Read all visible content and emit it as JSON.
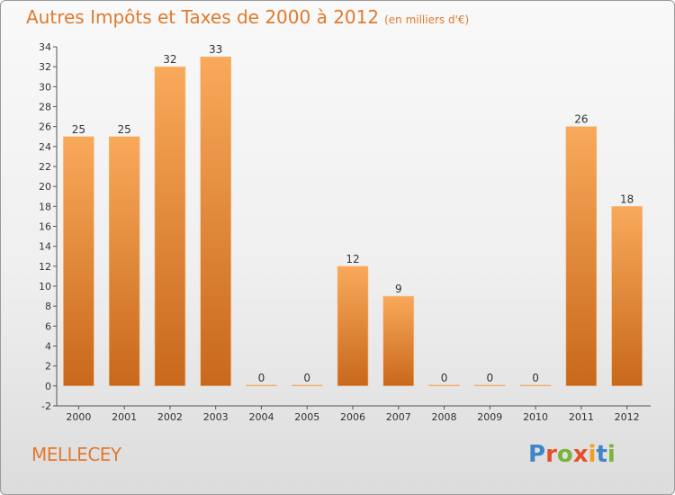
{
  "header": {
    "title": "Autres Impôts et Taxes de 2000 à 2012",
    "unit": "(en milliers d'€)"
  },
  "footer": {
    "commune": "MELLECEY",
    "logo_text": "Proxiti"
  },
  "colors": {
    "accent": "#e07a2e",
    "bar_light": "#f9a95a",
    "bar_dark": "#c8681c",
    "logo": [
      "#3f86c8",
      "#e4502c",
      "#7ab33a",
      "#e4502c",
      "#f0a020",
      "#3f86c8",
      "#7ab33a"
    ]
  },
  "chart_data": {
    "type": "bar",
    "categories": [
      "2000",
      "2001",
      "2002",
      "2003",
      "2004",
      "2005",
      "2006",
      "2007",
      "2008",
      "2009",
      "2010",
      "2011",
      "2012"
    ],
    "values": [
      25,
      25,
      32,
      33,
      0,
      0,
      12,
      9,
      0,
      0,
      0,
      26,
      18
    ],
    "ylim": [
      -2,
      34
    ],
    "yticks": [
      -2,
      0,
      2,
      4,
      6,
      8,
      10,
      12,
      14,
      16,
      18,
      20,
      22,
      24,
      26,
      28,
      30,
      32,
      34
    ],
    "grid": false,
    "data_labels": true
  }
}
